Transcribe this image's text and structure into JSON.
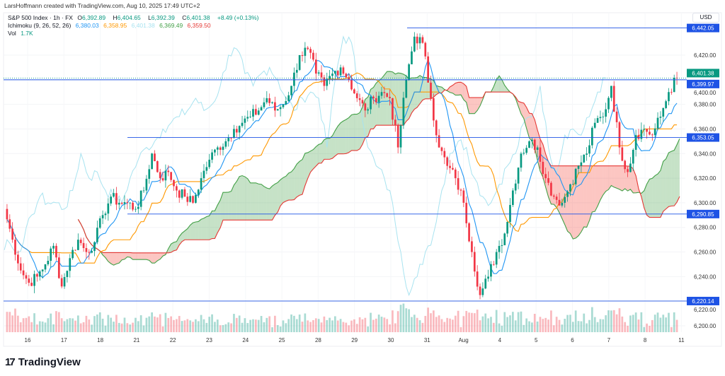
{
  "credit": "LarsHoffmann created with TradingView.com, Aug 10, 2025 17:49 UTC+2",
  "legend": {
    "symbol": "S&P 500 Index · 1h · FX",
    "o_label": "O",
    "o": "6,392.89",
    "h_label": "H",
    "h": "6,404.65",
    "l_label": "L",
    "l": "6,392.39",
    "c_label": "C",
    "c": "6,401.38",
    "change": "+8.49 (+0.13%)",
    "ichimoku_label": "Ichimoku (9, 26, 52, 26)",
    "ichimoku_values": [
      "6,380.03",
      "6,358.95",
      "6,401.38",
      "6,369.49",
      "6,359.50"
    ],
    "vol_label": "Vol",
    "vol": "1.7K"
  },
  "currency": "USD",
  "brand": "TradingView",
  "colors": {
    "up": "#089981",
    "down": "#f23645",
    "tenkan": "#2196f3",
    "kijun": "#ff9800",
    "lagging": "#a8e3f0",
    "spanA": "#43a047",
    "spanB": "#e53935",
    "hline": "#1e53e5"
  },
  "chart_data": {
    "type": "candlestick",
    "title": "S&P 500 Index · 1h · FX",
    "ylim": [
      6190,
      6450
    ],
    "y_ticks": [
      "6,420.00",
      "6,400.00",
      "6,380.00",
      "6,360.00",
      "6,340.00",
      "6,320.00",
      "6,300.00",
      "6,280.00",
      "6,260.00",
      "6,240.00",
      "6,220.00",
      "6,200.00"
    ],
    "y_tick_values": [
      6420,
      6400,
      6380,
      6360,
      6340,
      6320,
      6300,
      6280,
      6260,
      6240,
      6220,
      6200
    ],
    "x_ticks": [
      "16",
      "17",
      "18",
      "21",
      "22",
      "23",
      "24",
      "25",
      "28",
      "29",
      "30",
      "31",
      "Aug",
      "4",
      "5",
      "6",
      "7",
      "8",
      "11"
    ],
    "closes": [
      6295,
      6270,
      6245,
      6235,
      6240,
      6250,
      6265,
      6232,
      6255,
      6270,
      6260,
      6268,
      6290,
      6305,
      6300,
      6300,
      6295,
      6310,
      6340,
      6320,
      6325,
      6310,
      6305,
      6300,
      6320,
      6335,
      6345,
      6350,
      6360,
      6365,
      6370,
      6375,
      6385,
      6375,
      6380,
      6395,
      6420,
      6425,
      6405,
      6395,
      6405,
      6410,
      6400,
      6385,
      6375,
      6385,
      6390,
      6385,
      6345,
      6400,
      6435,
      6430,
      6385,
      6345,
      6330,
      6320,
      6300,
      6260,
      6225,
      6240,
      6260,
      6275,
      6310,
      6340,
      6350,
      6345,
      6320,
      6305,
      6300,
      6315,
      6330,
      6340,
      6365,
      6370,
      6395,
      6345,
      6325,
      6355,
      6360,
      6355,
      6370,
      6390,
      6401.38
    ],
    "horizontal_levels": [
      {
        "value": 6442.05,
        "label": "6,442.05",
        "color": "#1e53e5"
      },
      {
        "value": 6399.97,
        "label": "6,399.97",
        "color": "#1e53e5"
      },
      {
        "value": 6353.05,
        "label": "6,353.05",
        "color": "#1e53e5"
      },
      {
        "value": 6290.85,
        "label": "6,290.85",
        "color": "#1e53e5"
      },
      {
        "value": 6220.14,
        "label": "6,220.14",
        "color": "#1e53e5"
      }
    ],
    "last_price": {
      "value": 6401.38,
      "label": "6,401.38",
      "color": "#089981"
    },
    "ichimoku": {
      "tenkan": 9,
      "kijun": 26,
      "senkou_b": 52,
      "displacement": 26
    }
  }
}
